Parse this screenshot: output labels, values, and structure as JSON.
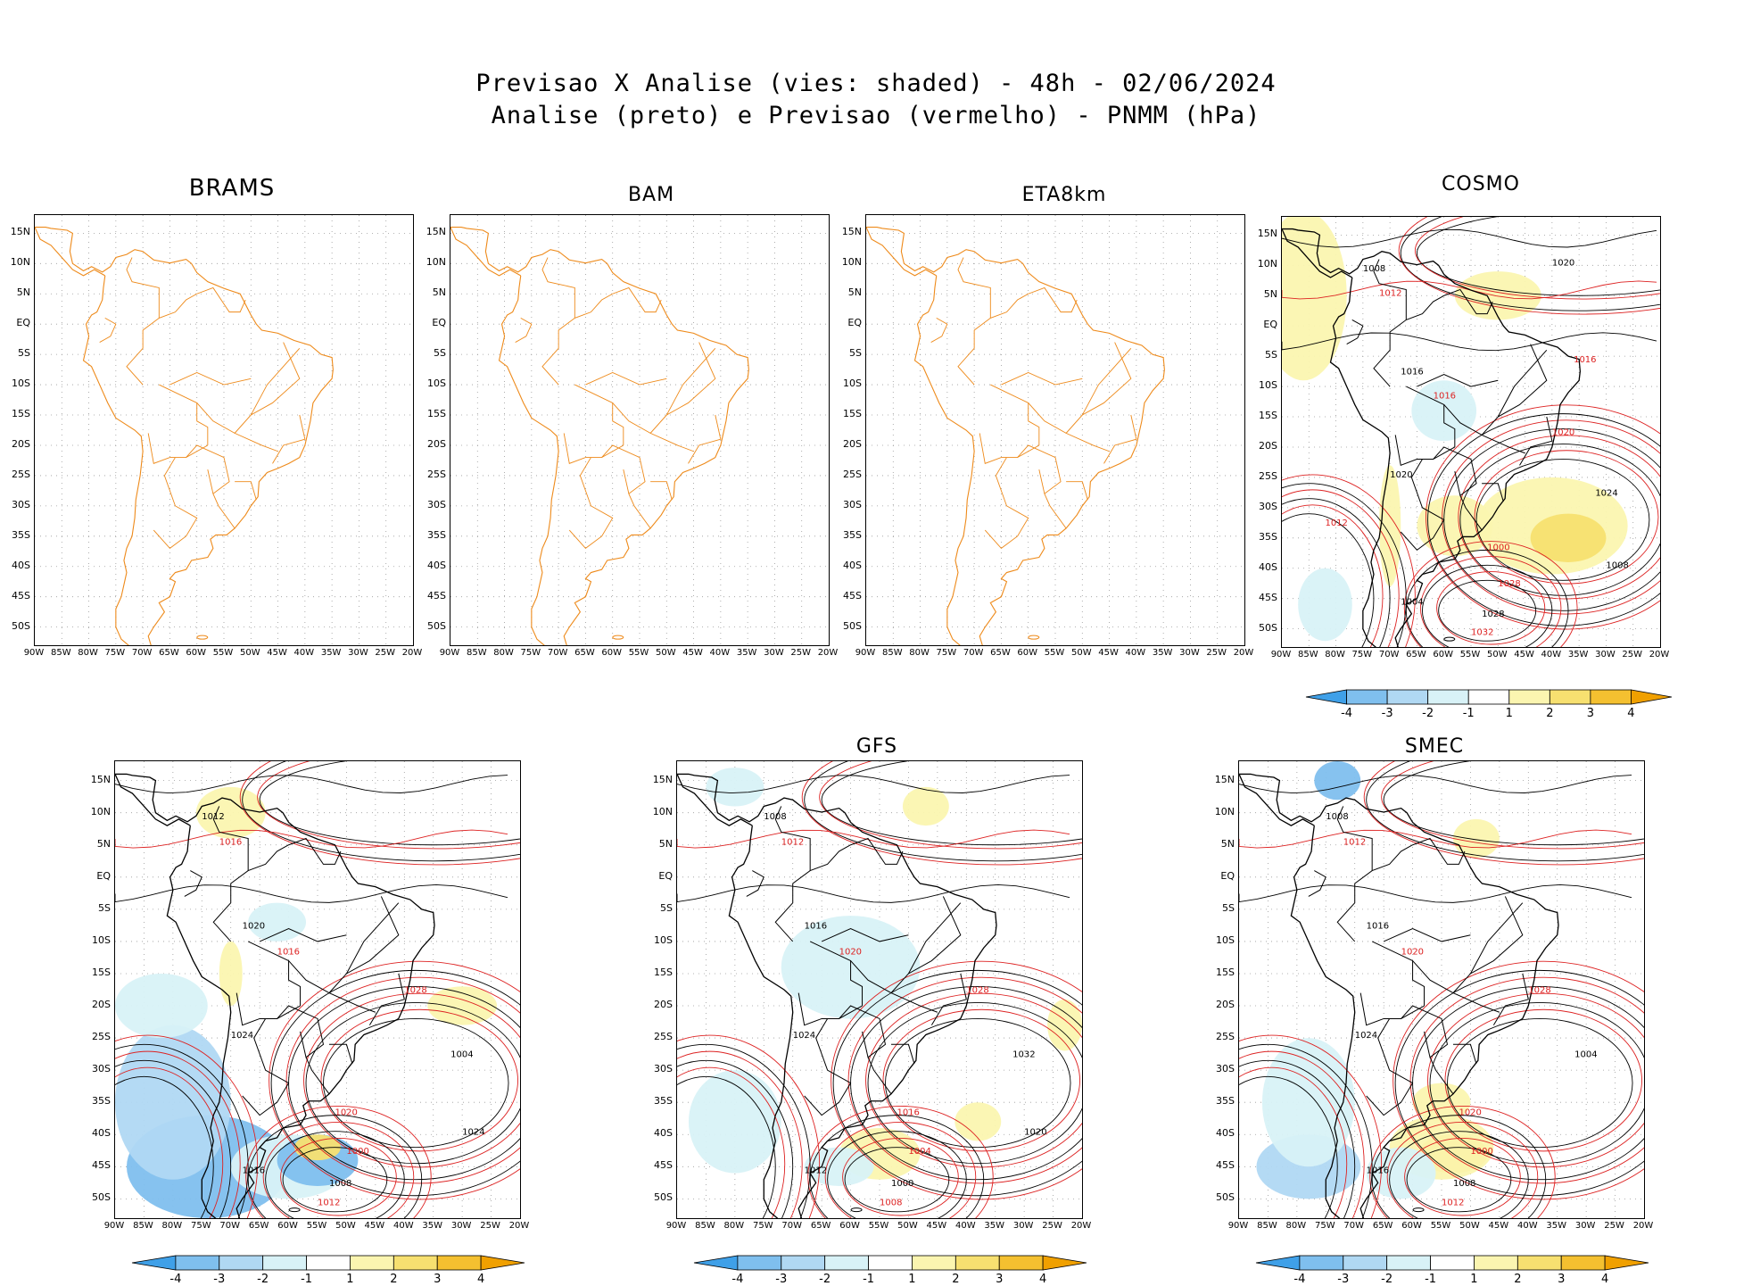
{
  "title": {
    "line1": "Previsao X Analise (vies: shaded) - 48h - 02/06/2024",
    "line2": "Analise (preto) e Previsao (vermelho) - PNMM (hPa)"
  },
  "panels": [
    {
      "name": "BRAMS",
      "has_data": false
    },
    {
      "name": "BAM",
      "has_data": false
    },
    {
      "name": "ETA8km",
      "has_data": false
    },
    {
      "name": "COSMO",
      "has_data": true
    },
    {
      "name": "",
      "has_data": true
    },
    {
      "name": "GFS",
      "has_data": true
    },
    {
      "name": "SMEC",
      "has_data": true
    }
  ],
  "lat_labels": [
    "15N",
    "10N",
    "5N",
    "EQ",
    "5S",
    "10S",
    "15S",
    "20S",
    "25S",
    "30S",
    "35S",
    "40S",
    "45S",
    "50S"
  ],
  "lon_labels": [
    "90W",
    "85W",
    "80W",
    "75W",
    "70W",
    "65W",
    "60W",
    "55W",
    "50W",
    "45W",
    "40W",
    "35W",
    "30W",
    "25W",
    "20W"
  ],
  "colorbar": {
    "labels": [
      "-4",
      "-3",
      "-2",
      "-1",
      "1",
      "2",
      "3",
      "4"
    ],
    "colors": [
      "#3fa0e8",
      "#7fbfee",
      "#b0d8f3",
      "#d8f2f7",
      "#ffffff",
      "#fbf5b0",
      "#f7e070",
      "#f4c030",
      "#f0a000"
    ]
  },
  "contour_labels": {
    "cosmo": [
      "1008",
      "1012",
      "1016",
      "1016",
      "1020",
      "1020",
      "1024",
      "1028",
      "1028",
      "1032",
      "1004",
      "1000",
      "1008",
      "1012",
      "1020",
      "1016"
    ],
    "brams_like": [
      "1012",
      "1016",
      "1020",
      "1016",
      "1024",
      "1028",
      "1004",
      "1000",
      "1008",
      "1012",
      "1016",
      "1020",
      "1024"
    ],
    "gfs": [
      "1008",
      "1012",
      "1016",
      "1020",
      "1024",
      "1028",
      "1032",
      "1004",
      "1000",
      "1008",
      "1012",
      "1016",
      "1020"
    ],
    "smec": [
      "1008",
      "1012",
      "1016",
      "1020",
      "1024",
      "1028",
      "1004",
      "1000",
      "1008",
      "1012",
      "1016",
      "1020"
    ]
  }
}
